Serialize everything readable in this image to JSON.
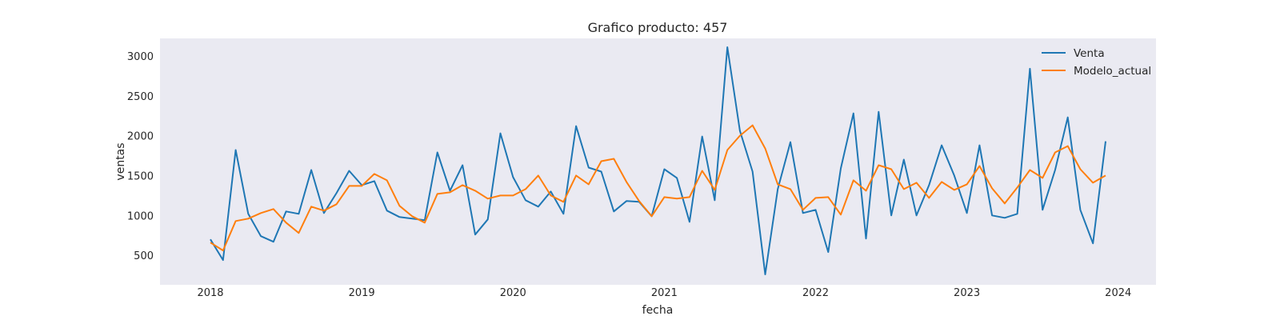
{
  "chart_data": {
    "type": "line",
    "title": "Grafico producto: 457",
    "xlabel": "fecha",
    "ylabel": "ventas",
    "x_ticks": [
      "2018",
      "2019",
      "2020",
      "2021",
      "2022",
      "2023",
      "2024"
    ],
    "y_ticks": [
      500,
      1000,
      1500,
      2000,
      2500,
      3000
    ],
    "xlim": [
      "2017-09",
      "2024-04"
    ],
    "ylim": [
      130,
      3220
    ],
    "grid": false,
    "legend_position": "top-right",
    "x": [
      "2018-01",
      "2018-02",
      "2018-03",
      "2018-04",
      "2018-05",
      "2018-06",
      "2018-07",
      "2018-08",
      "2018-09",
      "2018-10",
      "2018-11",
      "2018-12",
      "2019-01",
      "2019-02",
      "2019-03",
      "2019-04",
      "2019-05",
      "2019-06",
      "2019-07",
      "2019-08",
      "2019-09",
      "2019-10",
      "2019-11",
      "2019-12",
      "2020-01",
      "2020-02",
      "2020-03",
      "2020-04",
      "2020-05",
      "2020-06",
      "2020-07",
      "2020-08",
      "2020-09",
      "2020-10",
      "2020-11",
      "2020-12",
      "2021-01",
      "2021-02",
      "2021-03",
      "2021-04",
      "2021-05",
      "2021-06",
      "2021-07",
      "2021-08",
      "2021-09",
      "2021-10",
      "2021-11",
      "2021-12",
      "2022-01",
      "2022-02",
      "2022-03",
      "2022-04",
      "2022-05",
      "2022-06",
      "2022-07",
      "2022-08",
      "2022-09",
      "2022-10",
      "2022-11",
      "2022-12",
      "2023-01",
      "2023-02",
      "2023-03",
      "2023-04",
      "2023-05",
      "2023-06",
      "2023-07",
      "2023-08",
      "2023-09",
      "2023-10",
      "2023-11",
      "2023-12"
    ],
    "series": [
      {
        "name": "Venta",
        "color": "#1f77b4",
        "values": [
          700,
          440,
          1820,
          1020,
          740,
          670,
          1050,
          1020,
          1570,
          1030,
          1280,
          1560,
          1380,
          1430,
          1060,
          980,
          960,
          940,
          1790,
          1310,
          1630,
          760,
          950,
          2030,
          1480,
          1190,
          1110,
          1300,
          1020,
          2120,
          1600,
          1550,
          1050,
          1180,
          1170,
          990,
          1580,
          1470,
          920,
          1990,
          1190,
          3110,
          2060,
          1550,
          260,
          1330,
          1920,
          1030,
          1070,
          540,
          1590,
          2280,
          710,
          2300,
          1000,
          1700,
          1000,
          1380,
          1880,
          1500,
          1030,
          1880,
          1000,
          970,
          1020,
          2840,
          1070,
          1570,
          2230,
          1070,
          650,
          1930
        ]
      },
      {
        "name": "Modelo_actual",
        "color": "#ff7f0e",
        "values": [
          660,
          560,
          930,
          960,
          1030,
          1080,
          910,
          780,
          1110,
          1060,
          1140,
          1370,
          1370,
          1520,
          1440,
          1120,
          990,
          910,
          1270,
          1290,
          1380,
          1310,
          1210,
          1250,
          1250,
          1330,
          1500,
          1250,
          1170,
          1500,
          1390,
          1680,
          1710,
          1420,
          1180,
          990,
          1230,
          1210,
          1230,
          1560,
          1320,
          1820,
          2000,
          2130,
          1840,
          1390,
          1330,
          1070,
          1220,
          1230,
          1010,
          1440,
          1310,
          1630,
          1580,
          1330,
          1410,
          1220,
          1420,
          1320,
          1390,
          1620,
          1340,
          1150,
          1350,
          1570,
          1470,
          1790,
          1870,
          1580,
          1410,
          1500
        ]
      }
    ]
  }
}
